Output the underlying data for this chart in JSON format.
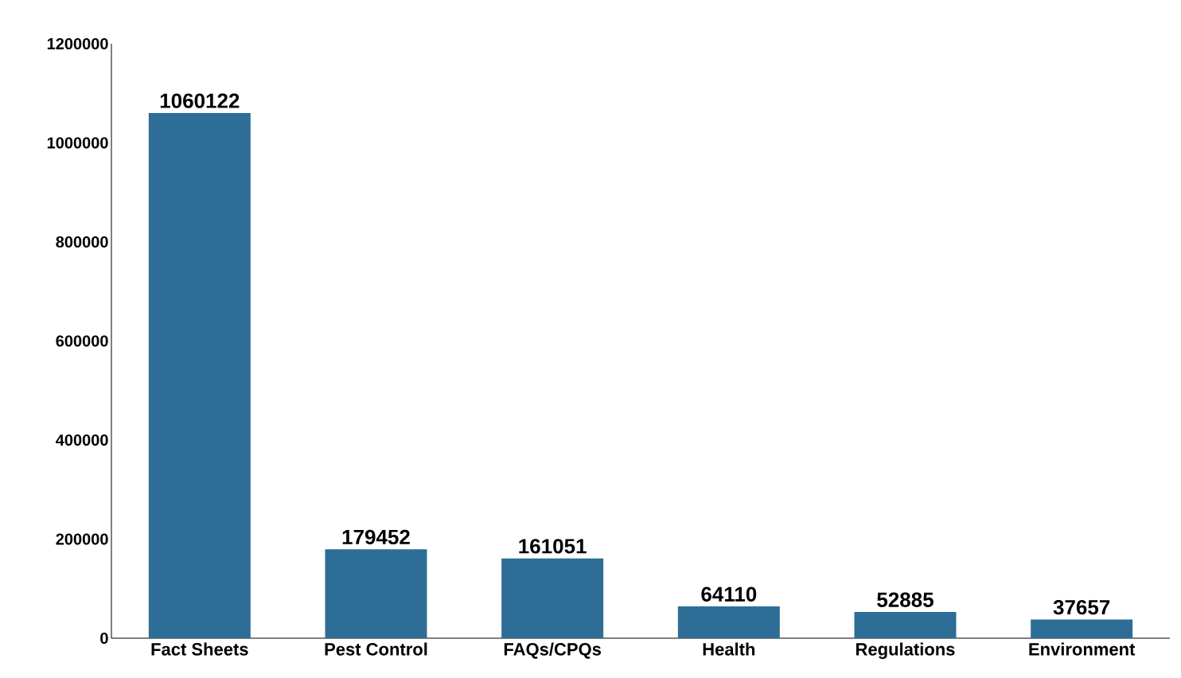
{
  "chart_data": {
    "type": "bar",
    "categories": [
      "Fact Sheets",
      "Pest Control",
      "FAQs/CPQs",
      "Health",
      "Regulations",
      "Environment"
    ],
    "values": [
      1060122,
      179452,
      161051,
      64110,
      52885,
      37657
    ],
    "color": "#2e6e96",
    "ylim": [
      0,
      1200000
    ],
    "yticks": [
      0,
      200000,
      400000,
      600000,
      800000,
      1000000,
      1200000
    ],
    "data_labels": true
  }
}
